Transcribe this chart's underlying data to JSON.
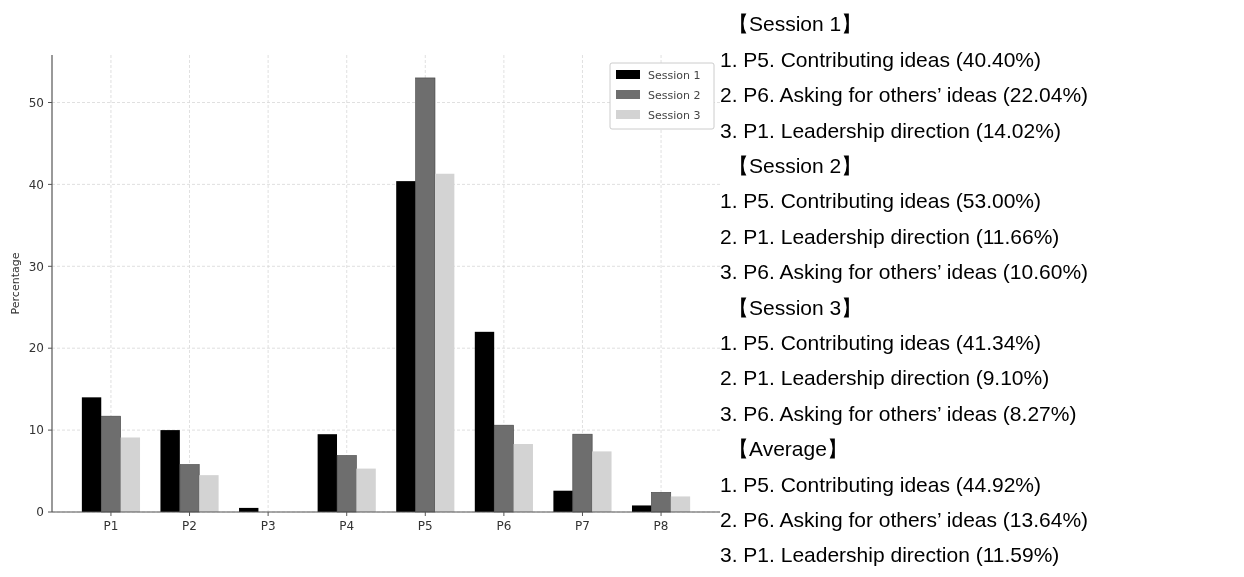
{
  "chart_data": {
    "type": "bar",
    "ylabel": "Percentage",
    "categories": [
      "P1",
      "P2",
      "P3",
      "P4",
      "P5",
      "P6",
      "P7",
      "P8"
    ],
    "series": [
      {
        "name": "Session 1",
        "color": "#000000",
        "values": [
          14.0,
          10.0,
          0.5,
          9.5,
          40.4,
          22.0,
          2.6,
          0.8
        ]
      },
      {
        "name": "Session 2",
        "color": "#6e6e6e",
        "values": [
          11.7,
          5.8,
          0,
          6.9,
          53.0,
          10.6,
          9.5,
          2.4
        ]
      },
      {
        "name": "Session 3",
        "color": "#d3d3d3",
        "values": [
          9.1,
          4.5,
          0,
          5.3,
          41.3,
          8.3,
          7.4,
          1.9
        ]
      }
    ],
    "ylim": [
      0,
      55.8
    ],
    "yticks": [
      0,
      10,
      20,
      30,
      40,
      50
    ],
    "grid": true,
    "legend": "top right",
    "annotations": [
      "【Session 1】",
      "1. P5. Contributing ideas (40.40%)",
      "2. P6. Asking for others’ ideas (22.04%)",
      "3. P1. Leadership direction (14.02%)",
      "【Session 2】",
      "1. P5. Contributing ideas (53.00%)",
      "2. P1. Leadership direction (11.66%)",
      "3. P6. Asking for others’ ideas (10.60%)",
      "【Session 3】",
      "1. P5. Contributing ideas (41.34%)",
      "2. P1. Leadership direction (9.10%)",
      "3. P6. Asking for others’ ideas (8.27%)",
      "【Average】",
      "1. P5. Contributing ideas (44.92%)",
      "2. P6. Asking for others’ ideas (13.64%)",
      "3. P1. Leadership direction (11.59%)"
    ]
  }
}
